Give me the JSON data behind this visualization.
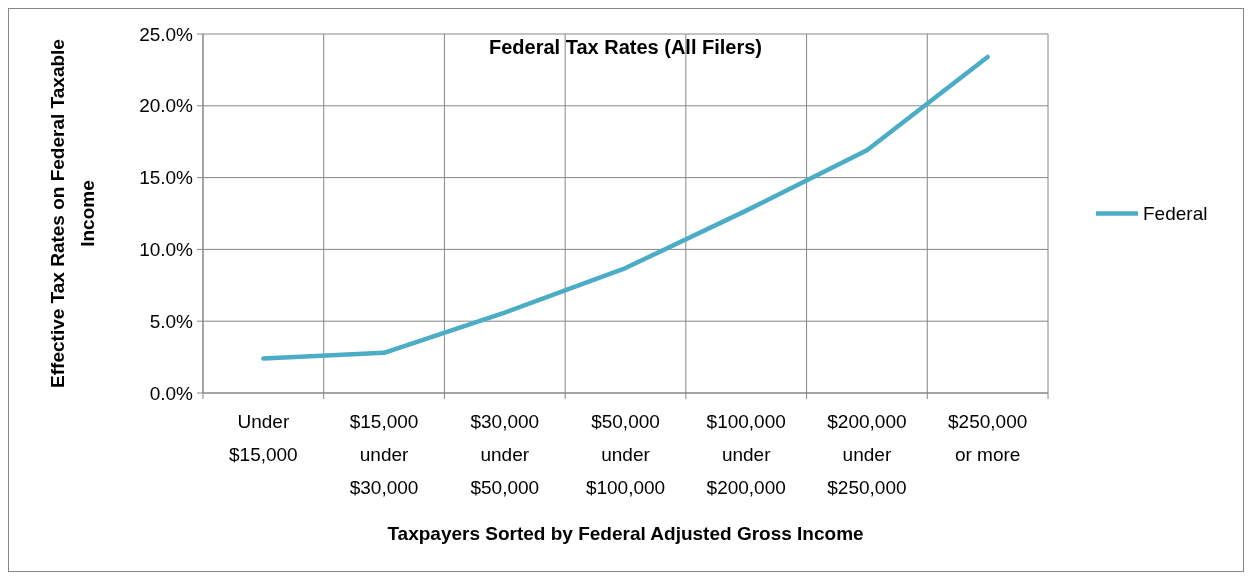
{
  "chart_data": {
    "type": "line",
    "title": "Federal Tax Rates (All Filers)",
    "xlabel": "Taxpayers Sorted by Federal Adjusted Gross Income",
    "ylabel": "Effective Tax Rates on Federal Taxable Income",
    "categories": [
      "Under $15,000",
      "$15,000 under $30,000",
      "$30,000 under $50,000",
      "$50,000 under $100,000",
      "$100,000 under $200,000",
      "$200,000 under $250,000",
      "$250,000 or more"
    ],
    "series": [
      {
        "name": "Federal",
        "color": "#4bacc6",
        "values": [
          2.4,
          2.8,
          5.6,
          8.7,
          12.7,
          16.9,
          23.4
        ]
      }
    ],
    "ylim": [
      0,
      25
    ],
    "yticks": [
      {
        "value": 0,
        "label": "0.0%"
      },
      {
        "value": 5,
        "label": "5.0%"
      },
      {
        "value": 10,
        "label": "10.0%"
      },
      {
        "value": 15,
        "label": "15.0%"
      },
      {
        "value": 20,
        "label": "20.0%"
      },
      {
        "value": 25,
        "label": "25.0%"
      }
    ],
    "grid": true,
    "legend": "right",
    "marker": "none",
    "line_style": "solid"
  }
}
